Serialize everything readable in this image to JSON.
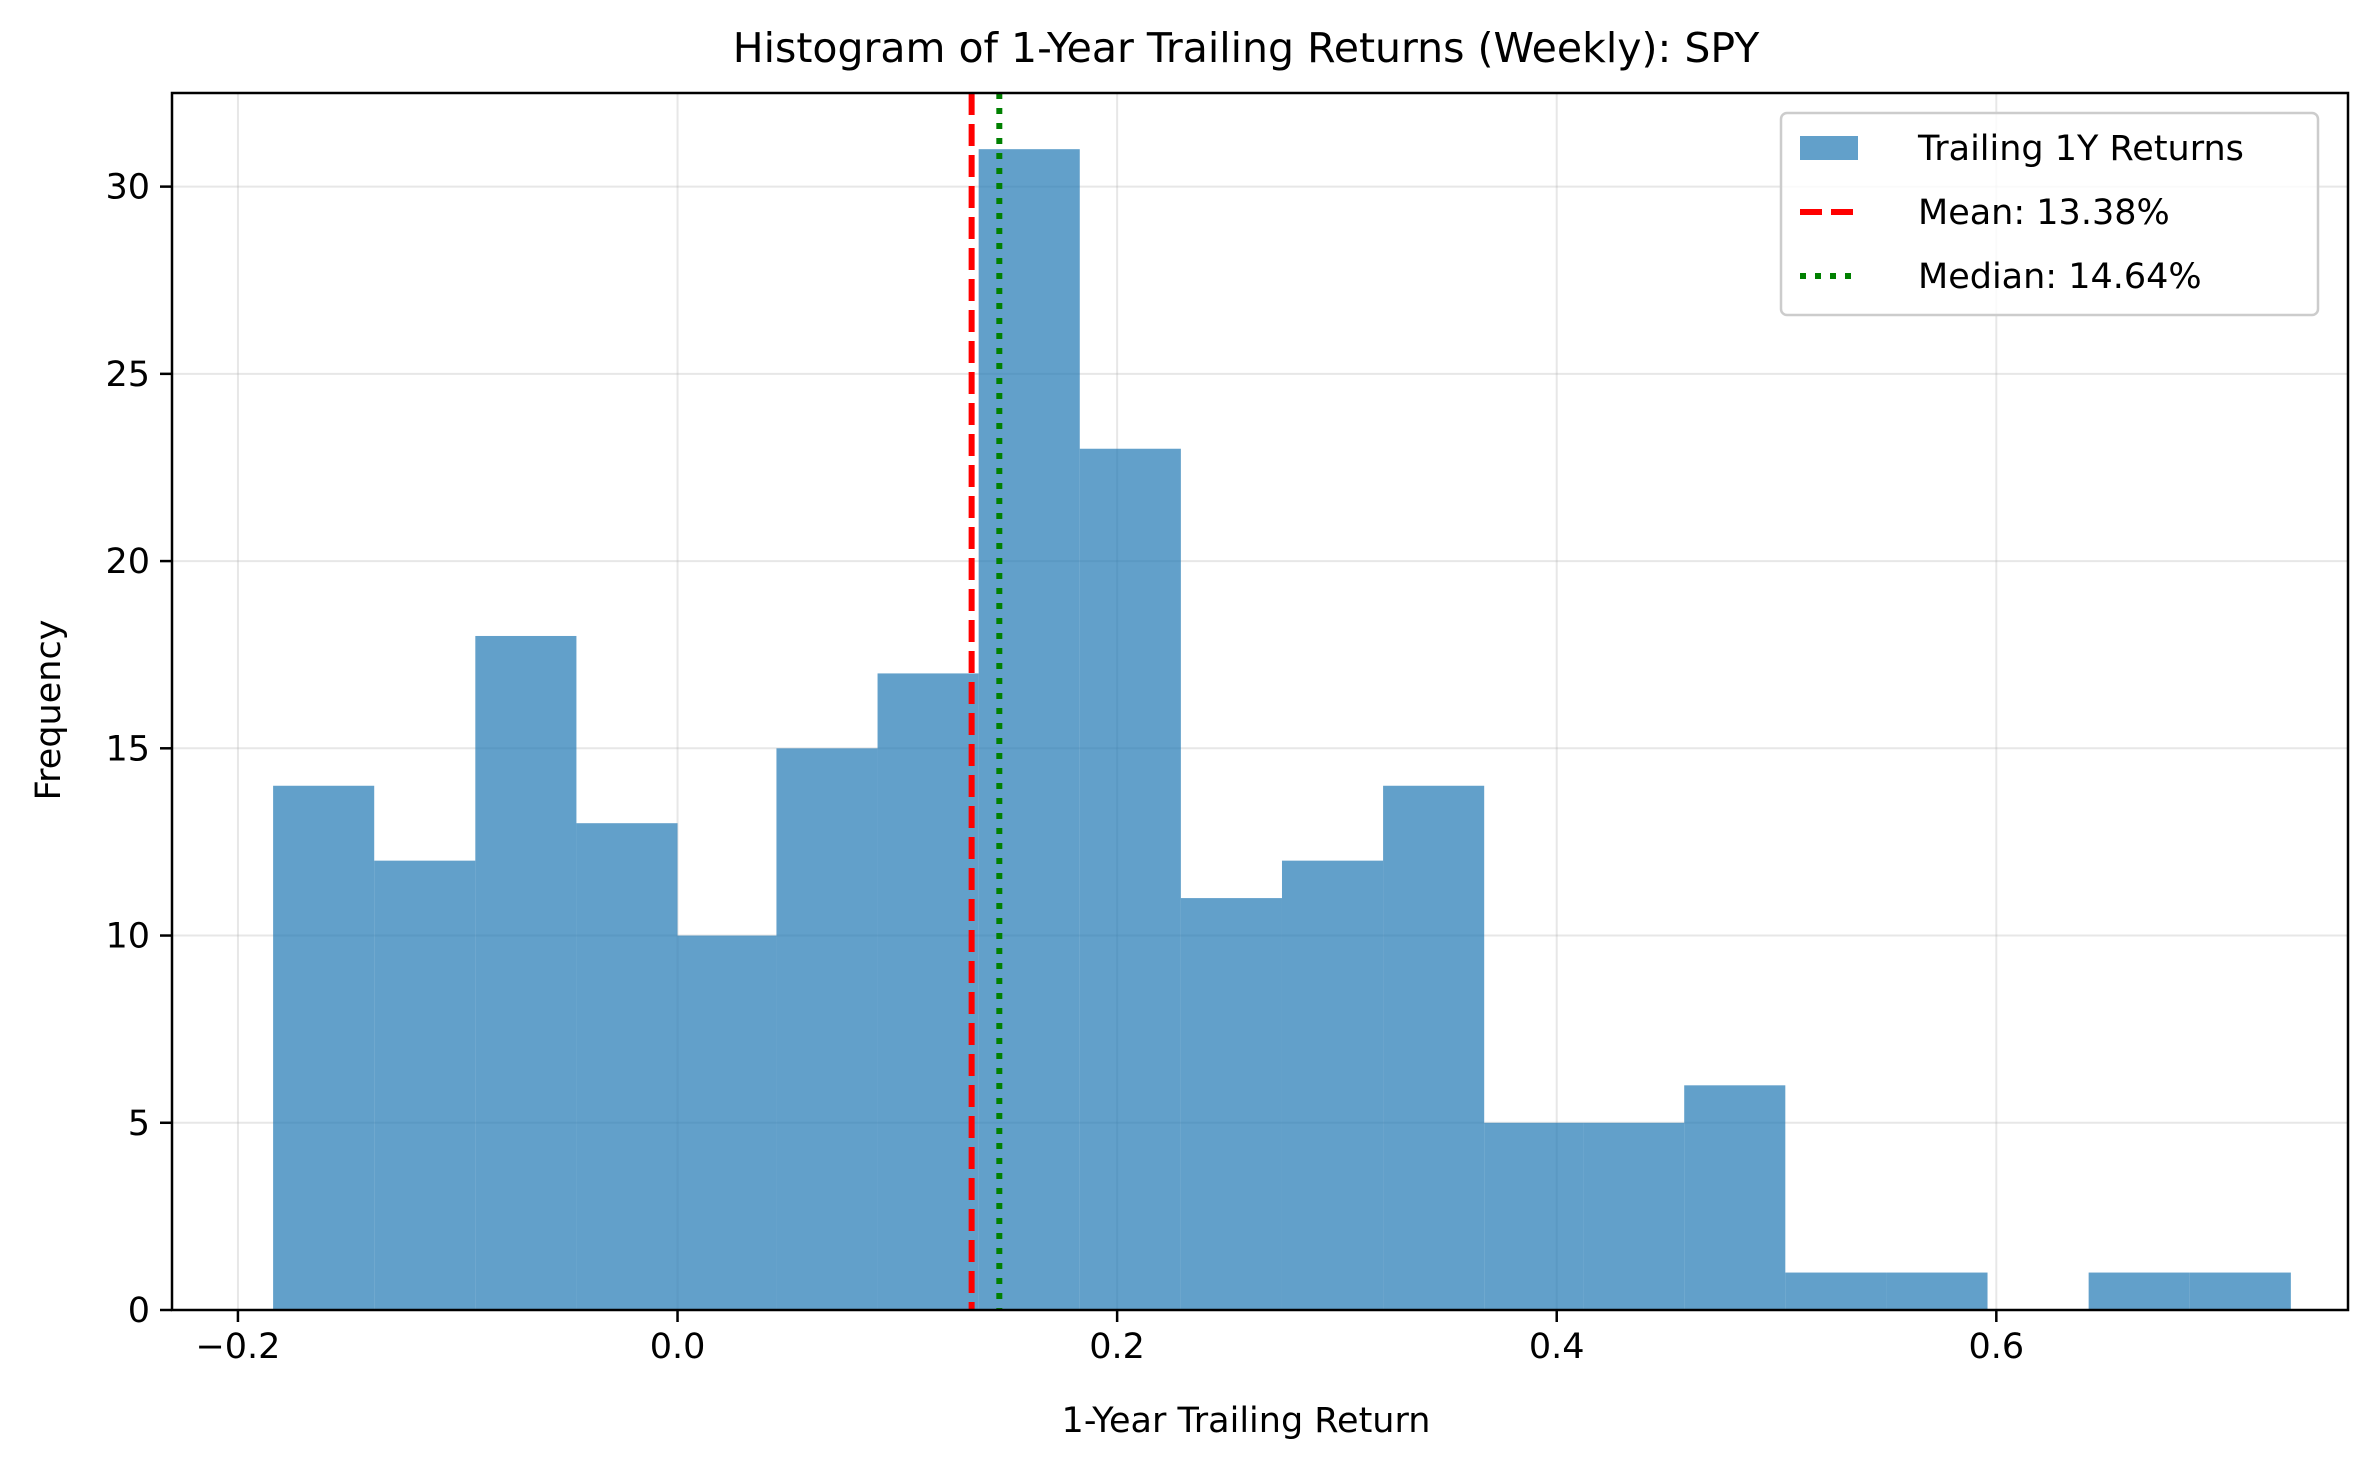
{
  "chart_data": {
    "type": "histogram",
    "title": "Histogram of 1-Year Trailing Returns (Weekly): SPY",
    "xlabel": "1-Year Trailing Return",
    "ylabel": "Frequency",
    "xlim": [
      -0.23,
      0.76
    ],
    "ylim": [
      0,
      32.5
    ],
    "xticks": [
      -0.2,
      0.0,
      0.2,
      0.4,
      0.6
    ],
    "xtick_labels": [
      "−0.2",
      "0.0",
      "0.2",
      "0.4",
      "0.6"
    ],
    "yticks": [
      0,
      5,
      10,
      15,
      20,
      25,
      30
    ],
    "ytick_labels": [
      "0",
      "5",
      "10",
      "15",
      "20",
      "25",
      "30"
    ],
    "grid": true,
    "legend_position": "top-right",
    "bar_color": "#1f77b4",
    "bar_alpha": 0.7,
    "bins": [
      {
        "x0": -0.184,
        "x1": -0.138,
        "count": 14
      },
      {
        "x0": -0.138,
        "x1": -0.092,
        "count": 12
      },
      {
        "x0": -0.092,
        "x1": -0.046,
        "count": 18
      },
      {
        "x0": -0.046,
        "x1": 0.0,
        "count": 13
      },
      {
        "x0": 0.0,
        "x1": 0.045,
        "count": 10
      },
      {
        "x0": 0.045,
        "x1": 0.091,
        "count": 15
      },
      {
        "x0": 0.091,
        "x1": 0.137,
        "count": 17
      },
      {
        "x0": 0.137,
        "x1": 0.183,
        "count": 31
      },
      {
        "x0": 0.183,
        "x1": 0.229,
        "count": 23
      },
      {
        "x0": 0.229,
        "x1": 0.275,
        "count": 11
      },
      {
        "x0": 0.275,
        "x1": 0.321,
        "count": 12
      },
      {
        "x0": 0.321,
        "x1": 0.367,
        "count": 14
      },
      {
        "x0": 0.367,
        "x1": 0.412,
        "count": 5
      },
      {
        "x0": 0.412,
        "x1": 0.458,
        "count": 5
      },
      {
        "x0": 0.458,
        "x1": 0.504,
        "count": 6
      },
      {
        "x0": 0.504,
        "x1": 0.55,
        "count": 1
      },
      {
        "x0": 0.55,
        "x1": 0.596,
        "count": 1
      },
      {
        "x0": 0.596,
        "x1": 0.642,
        "count": 0
      },
      {
        "x0": 0.642,
        "x1": 0.688,
        "count": 1
      },
      {
        "x0": 0.688,
        "x1": 0.734,
        "count": 1
      }
    ],
    "series": [
      {
        "name": "Trailing 1Y Returns",
        "style": "bar",
        "color": "#1f77b4"
      },
      {
        "name": "Mean: 13.38%",
        "style": "dashed",
        "color": "#ff0000",
        "x": 0.1338
      },
      {
        "name": "Median: 14.64%",
        "style": "dotted",
        "color": "#008000",
        "x": 0.1464
      }
    ]
  }
}
